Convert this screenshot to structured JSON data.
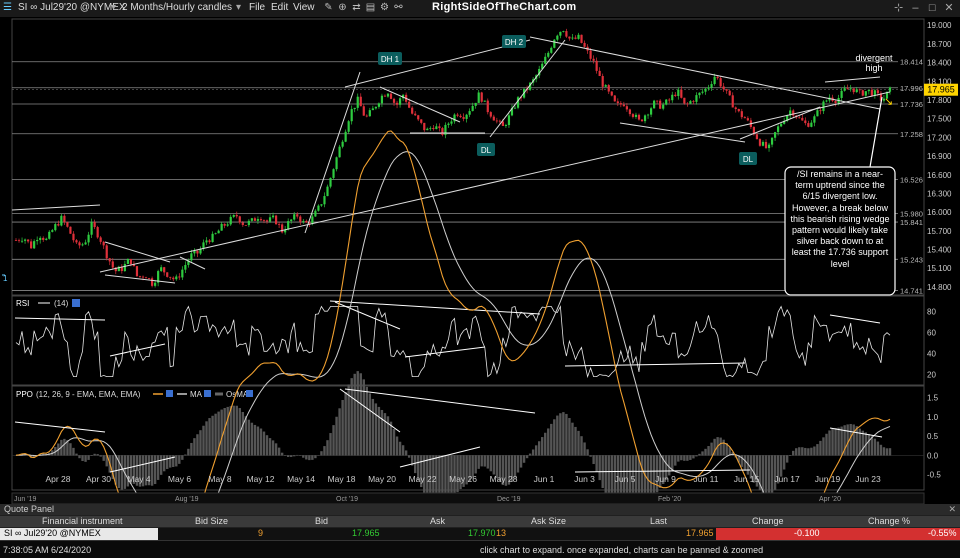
{
  "toolbar": {
    "symbol": "SI ∞ Jul29'20 @NYMEX",
    "interval": "2 Months/Hourly candles",
    "menu": [
      "File",
      "Edit",
      "View"
    ],
    "brand": "RightSideOfTheChart.com"
  },
  "chart_data": [
    {
      "type": "candlestick",
      "title": "",
      "y_ticks": [
        19.0,
        18.7,
        18.4,
        18.1,
        17.8,
        17.5,
        17.2,
        16.9,
        16.6,
        16.3,
        16.0,
        15.7,
        15.4,
        15.1,
        14.8
      ],
      "ylim": [
        14.67,
        19.1
      ],
      "level_labels": [
        18.414,
        17.996,
        17.736,
        17.258,
        16.526,
        15.98,
        15.841,
        15.243,
        14.741
      ],
      "last_price": 17.965,
      "x_labels": [
        "Apr 28",
        "Apr 30",
        "May 4",
        "May 6",
        "May 8",
        "May 12",
        "May 14",
        "May 18",
        "May 20",
        "May 22",
        "May 26",
        "May 28",
        "Jun 1",
        "Jun 3",
        "Jun 5",
        "Jun 9",
        "Jun 11",
        "Jun 15",
        "Jun 17",
        "Jun 19",
        "Jun 23"
      ],
      "close_path": [
        15.55,
        15.6,
        15.45,
        15.65,
        15.55,
        15.75,
        15.9,
        15.7,
        15.45,
        15.5,
        15.8,
        15.6,
        15.3,
        15.05,
        15.1,
        15.25,
        14.95,
        15.0,
        14.85,
        15.1,
        15.0,
        14.9,
        15.1,
        15.3,
        15.35,
        15.55,
        15.6,
        15.75,
        15.85,
        15.95,
        15.8,
        15.85,
        15.95,
        15.85,
        15.9,
        15.7,
        15.85,
        15.95,
        15.8,
        15.9,
        16.1,
        16.4,
        16.8,
        17.2,
        17.6,
        17.8,
        17.5,
        17.65,
        17.85,
        17.95,
        17.7,
        17.9,
        17.6,
        17.45,
        17.3,
        17.4,
        17.25,
        17.45,
        17.6,
        17.55,
        17.7,
        17.9,
        17.65,
        17.5,
        17.35,
        17.55,
        17.8,
        17.95,
        18.1,
        18.3,
        18.55,
        18.85,
        18.95,
        18.75,
        18.8,
        18.6,
        18.4,
        18.1,
        17.9,
        17.7,
        17.75,
        17.6,
        17.45,
        17.6,
        17.75,
        17.7,
        17.8,
        17.95,
        17.7,
        17.8,
        17.9,
        18.0,
        18.2,
        18.0,
        17.8,
        17.6,
        17.5,
        17.3,
        17.1,
        17.0,
        17.3,
        17.5,
        17.65,
        17.5,
        17.4,
        17.5,
        17.7,
        17.85,
        17.8,
        17.95,
        18.0,
        17.9,
        17.95,
        17.9,
        17.8,
        17.95
      ],
      "annotations": [
        "DH 1",
        "DH 2",
        "DL",
        "DL",
        "divergent high"
      ],
      "callout": "/SI remains in a near-term uptrend since the 6/15 divergent low. However, a break below this bearish rising wedge pattern would likely take silver back down to at least the 17.736 support level",
      "bottom_labels": [
        "Jun '19",
        "Aug '19",
        "Oct '19",
        "Dec '19",
        "Feb '20",
        "Apr '20"
      ]
    },
    {
      "type": "line",
      "name": "RSI",
      "params": "(14)",
      "y_ticks": [
        80,
        60,
        40,
        20
      ],
      "ylim": [
        10,
        95
      ]
    },
    {
      "type": "line",
      "name": "PPO",
      "params": "(12, 26, 9 - EMA, EMA, EMA)",
      "legend": [
        "MA",
        "OsMA"
      ],
      "y_ticks": [
        1.5,
        1.0,
        0.5,
        0.0,
        -0.5
      ],
      "ylim": [
        -0.9,
        1.8
      ]
    }
  ],
  "quote_panel": {
    "title": "Quote Panel",
    "columns": [
      "Financial instrument",
      "Bid Size",
      "Bid",
      "Ask",
      "Ask Size",
      "Last",
      "Change",
      "Change %"
    ],
    "row": {
      "instrument": "SI ∞ Jul29'20 @NYMEX",
      "bid_size": "9",
      "bid": "17.965",
      "ask": "17.970",
      "ask_size": "13",
      "last": "17.965",
      "change": "-0.100",
      "change_pct": "-0.55%"
    }
  },
  "status": {
    "time": "7:38:05 AM 6/24/2020",
    "hint": "click chart to expand. once expanded, charts can be panned & zoomed"
  }
}
